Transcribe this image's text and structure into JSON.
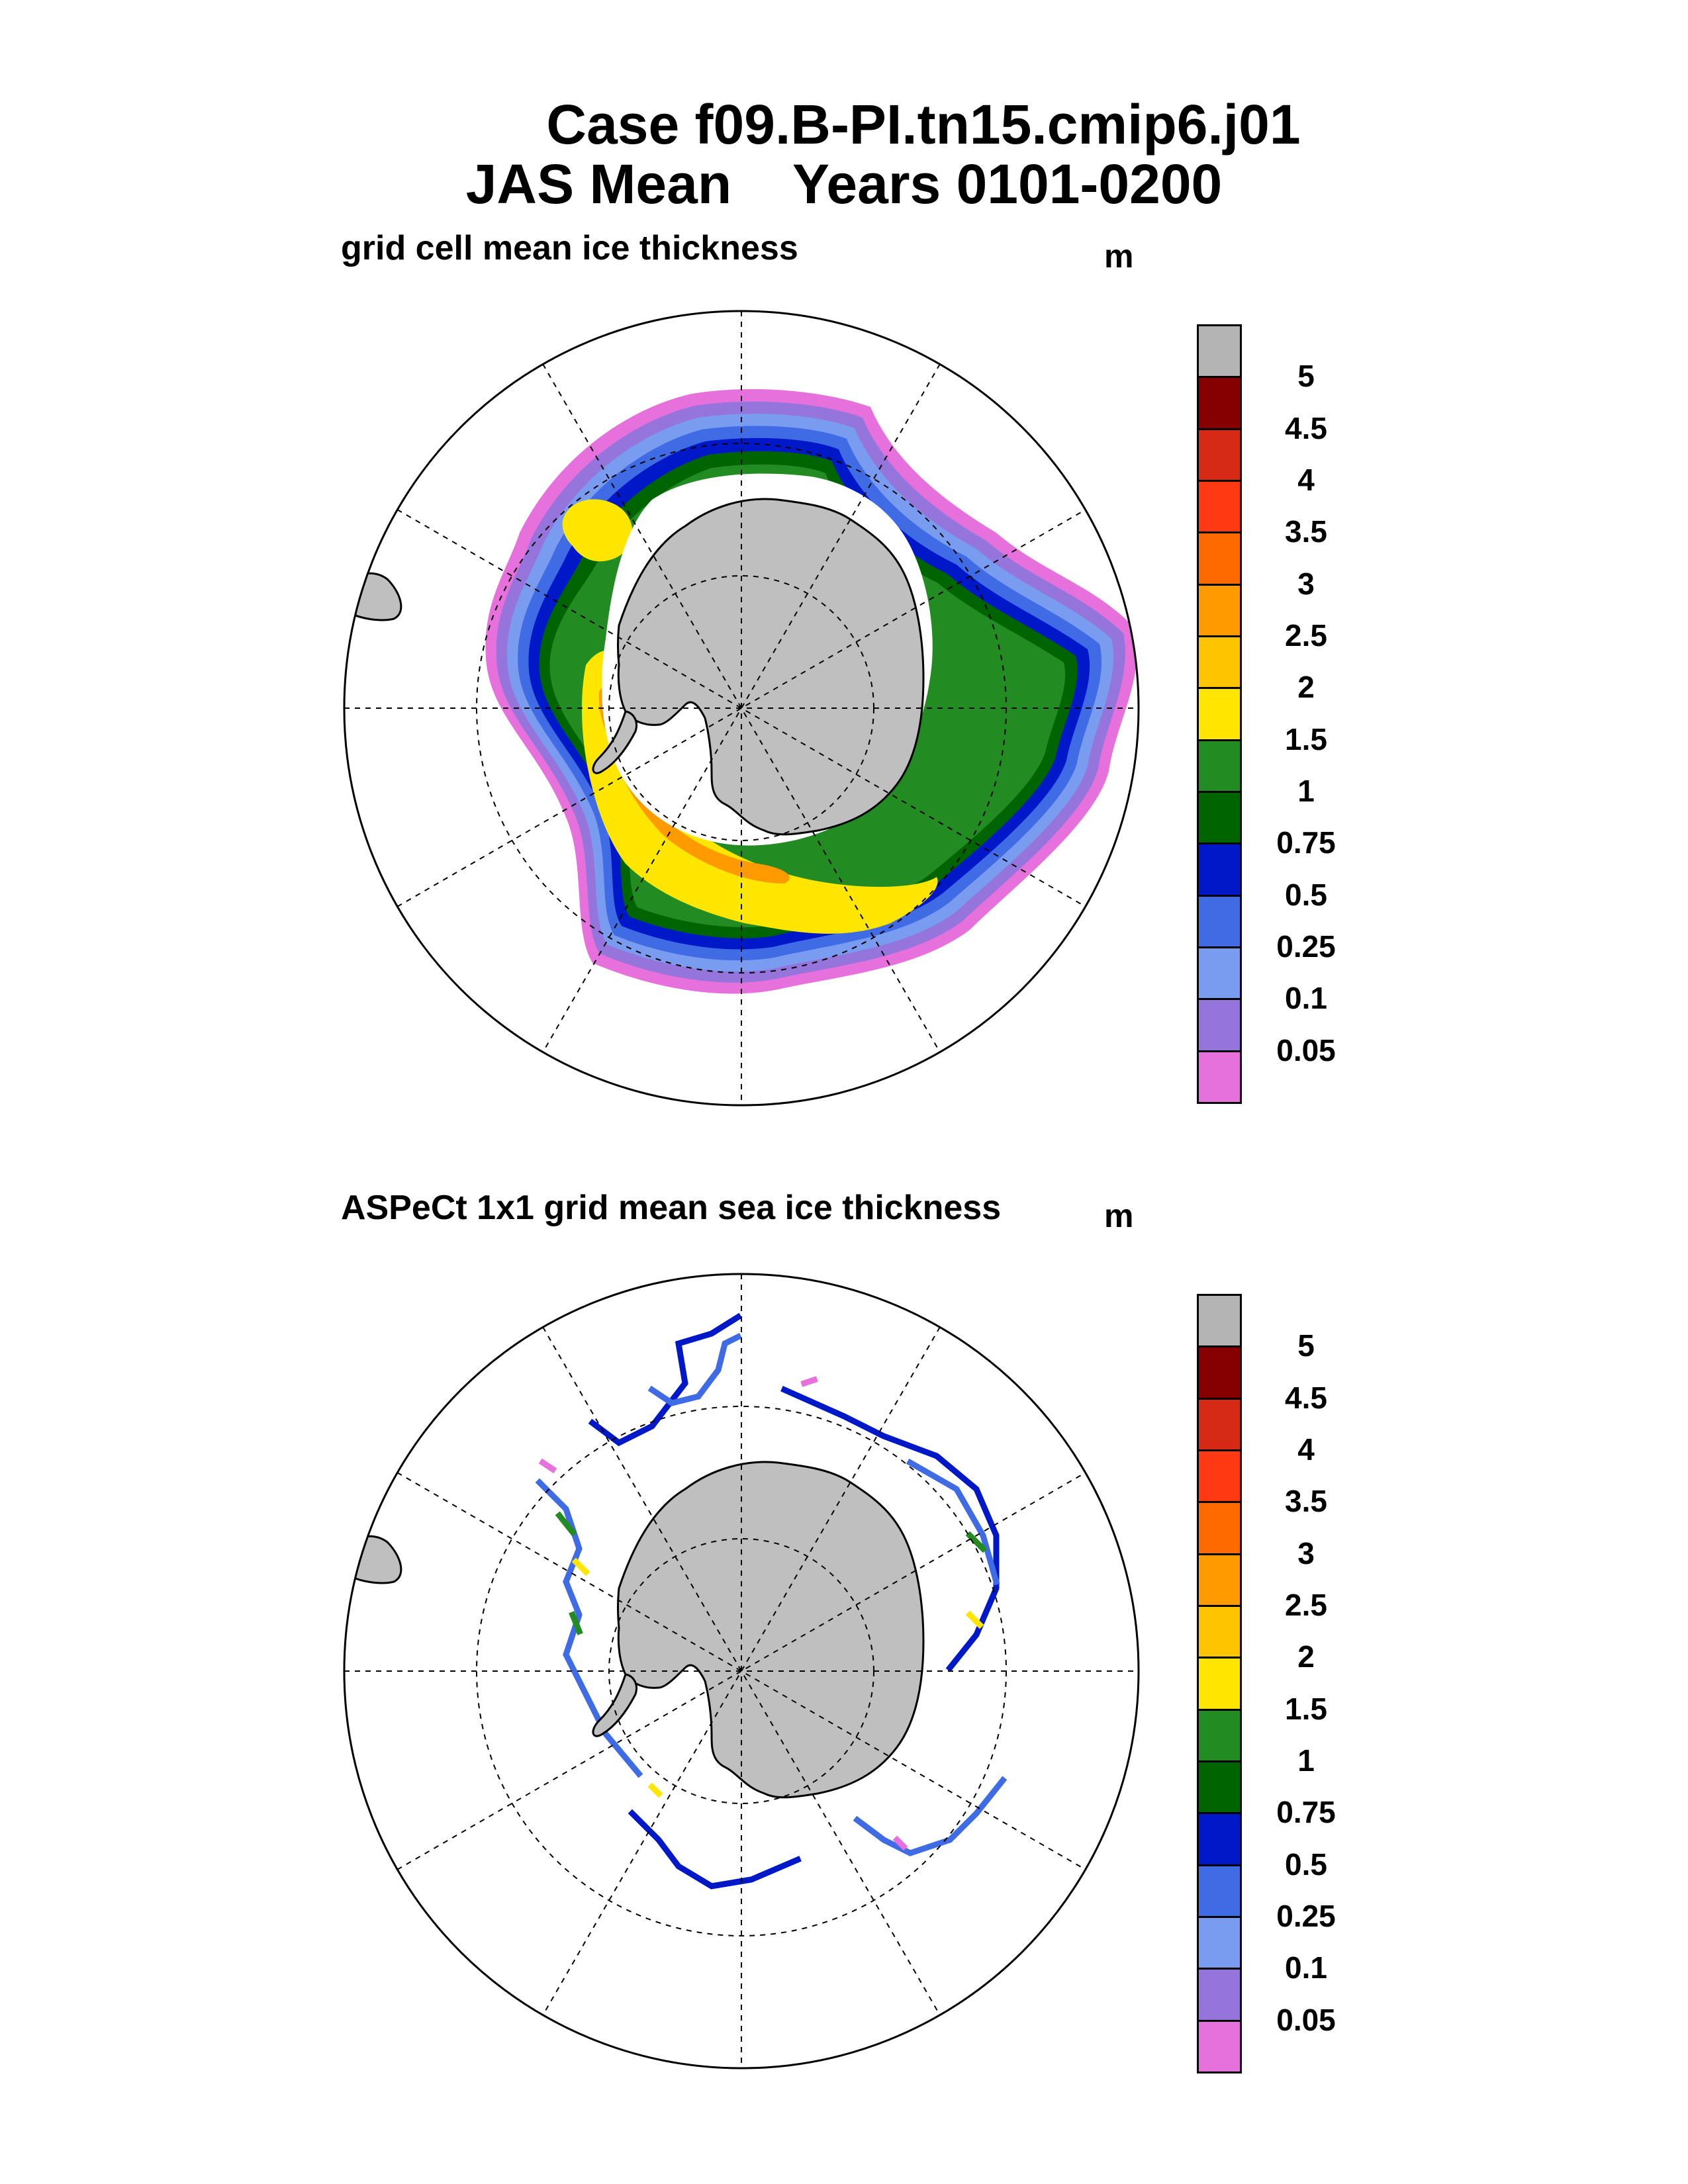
{
  "title": {
    "line1": "Case f09.B-PI.tn15.cmip6.j01",
    "line2": "JAS Mean    Years 0101-0200"
  },
  "panels": [
    {
      "title": "grid cell mean ice thickness",
      "units": "m"
    },
    {
      "title": "ASPeCt 1x1 grid mean sea ice thickness",
      "units": "m"
    }
  ],
  "colorbar": {
    "labels": [
      "5",
      "4.5",
      "4",
      "3.5",
      "3",
      "2.5",
      "2",
      "1.5",
      "1",
      "0.75",
      "0.5",
      "0.25",
      "0.1",
      "0.05"
    ],
    "colors_top_to_bottom": [
      "#b4b4b4",
      "#870000",
      "#d62a16",
      "#ff3a12",
      "#ff6a00",
      "#ff9a00",
      "#ffc400",
      "#ffe600",
      "#228b22",
      "#006400",
      "#0018c8",
      "#3f6be4",
      "#7a9cf0",
      "#9575db",
      "#e670dc"
    ]
  },
  "colors": {
    "land": "#bfbfbf",
    "background": "#ffffff"
  }
}
